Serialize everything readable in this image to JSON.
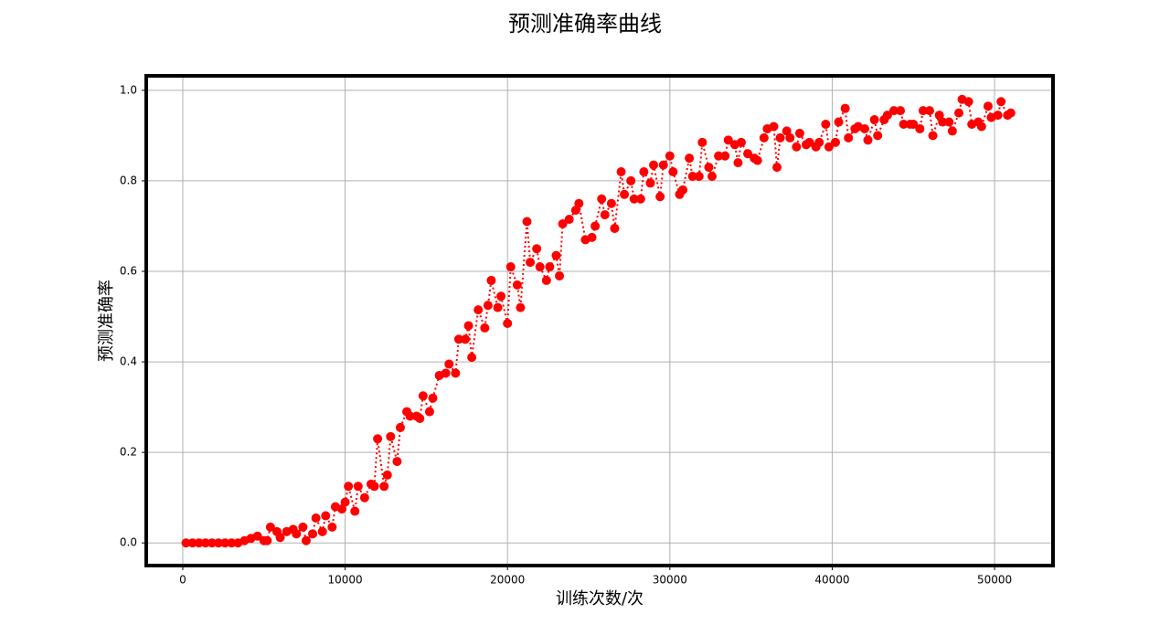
{
  "chart_data": {
    "type": "line",
    "title": "预测准确率曲线",
    "xlabel": "训练次数/次",
    "ylabel": "预测准确率",
    "x": [
      200,
      600,
      1000,
      1400,
      1800,
      2200,
      2600,
      3000,
      3400,
      3800,
      4200,
      4600,
      5000,
      5200,
      5400,
      5800,
      6000,
      6400,
      6800,
      7000,
      7400,
      7600,
      8000,
      8200,
      8600,
      8800,
      9200,
      9400,
      9800,
      10000,
      10200,
      10600,
      10800,
      11200,
      11600,
      11800,
      12000,
      12400,
      12600,
      12800,
      13200,
      13400,
      13800,
      14000,
      14400,
      14600,
      14800,
      15200,
      15400,
      15800,
      16200,
      16400,
      16800,
      17000,
      17400,
      17600,
      17800,
      18200,
      18600,
      18800,
      19000,
      19400,
      19600,
      20000,
      20200,
      20600,
      20800,
      21200,
      21400,
      21800,
      22000,
      22400,
      22600,
      23000,
      23200,
      23400,
      23800,
      24200,
      24400,
      24800,
      25200,
      25400,
      25800,
      26000,
      26400,
      26600,
      27000,
      27200,
      27600,
      27800,
      28200,
      28400,
      28800,
      29000,
      29400,
      29600,
      30000,
      30200,
      30600,
      30800,
      31200,
      31400,
      31800,
      32000,
      32400,
      32600,
      33000,
      33400,
      33600,
      34000,
      34200,
      34400,
      34800,
      35200,
      35400,
      35800,
      36000,
      36400,
      36600,
      36800,
      37200,
      37400,
      37800,
      38000,
      38400,
      38600,
      39000,
      39200,
      39600,
      39800,
      40200,
      40400,
      40800,
      41000,
      41400,
      41600,
      42000,
      42200,
      42600,
      42800,
      43200,
      43400,
      43800,
      44200,
      44400,
      44800,
      45000,
      45400,
      45600,
      46000,
      46200,
      46600,
      46800,
      47200,
      47400,
      47800,
      48000,
      48400,
      48600,
      49000,
      49200,
      49600,
      49800,
      50200,
      50400,
      50800,
      51000
    ],
    "series": [
      {
        "name": "预测准确率",
        "color": "#ff0000",
        "values": [
          0,
          0,
          0,
          0,
          0,
          0,
          0,
          0,
          0,
          0.005,
          0.01,
          0.015,
          0.005,
          0.005,
          0.035,
          0.025,
          0.012,
          0.025,
          0.03,
          0.02,
          0.035,
          0.005,
          0.02,
          0.055,
          0.025,
          0.06,
          0.035,
          0.08,
          0.075,
          0.09,
          0.125,
          0.07,
          0.125,
          0.1,
          0.13,
          0.125,
          0.23,
          0.125,
          0.15,
          0.235,
          0.18,
          0.255,
          0.29,
          0.28,
          0.28,
          0.275,
          0.325,
          0.29,
          0.32,
          0.37,
          0.375,
          0.395,
          0.375,
          0.45,
          0.45,
          0.48,
          0.41,
          0.515,
          0.475,
          0.525,
          0.58,
          0.52,
          0.545,
          0.485,
          0.61,
          0.57,
          0.52,
          0.71,
          0.62,
          0.65,
          0.61,
          0.58,
          0.61,
          0.635,
          0.59,
          0.705,
          0.715,
          0.735,
          0.75,
          0.67,
          0.675,
          0.7,
          0.76,
          0.725,
          0.75,
          0.695,
          0.82,
          0.77,
          0.8,
          0.76,
          0.76,
          0.82,
          0.795,
          0.835,
          0.765,
          0.835,
          0.855,
          0.82,
          0.77,
          0.78,
          0.85,
          0.81,
          0.81,
          0.885,
          0.83,
          0.81,
          0.855,
          0.855,
          0.89,
          0.88,
          0.84,
          0.885,
          0.86,
          0.85,
          0.845,
          0.895,
          0.915,
          0.92,
          0.83,
          0.895,
          0.91,
          0.895,
          0.875,
          0.905,
          0.88,
          0.885,
          0.875,
          0.885,
          0.925,
          0.875,
          0.885,
          0.93,
          0.96,
          0.895,
          0.915,
          0.92,
          0.915,
          0.89,
          0.935,
          0.9,
          0.935,
          0.945,
          0.955,
          0.955,
          0.925,
          0.925,
          0.925,
          0.915,
          0.955,
          0.955,
          0.9,
          0.945,
          0.93,
          0.93,
          0.91,
          0.95,
          0.98,
          0.975,
          0.925,
          0.93,
          0.92,
          0.965,
          0.94,
          0.945,
          0.975,
          0.945,
          0.95
        ]
      }
    ],
    "xlim": [
      -2250,
      53600
    ],
    "ylim": [
      -0.05,
      1.032
    ],
    "xticks": [
      0,
      10000,
      20000,
      30000,
      40000,
      50000
    ],
    "yticks": [
      {
        "value": 0,
        "label": "0.0"
      },
      {
        "value": 0.2,
        "label": "0.2"
      },
      {
        "value": 0.4,
        "label": "0.4"
      },
      {
        "value": 0.6,
        "label": "0.6"
      },
      {
        "value": 0.8,
        "label": "0.8"
      },
      {
        "value": 1,
        "label": "1.0"
      }
    ],
    "grid": true
  }
}
